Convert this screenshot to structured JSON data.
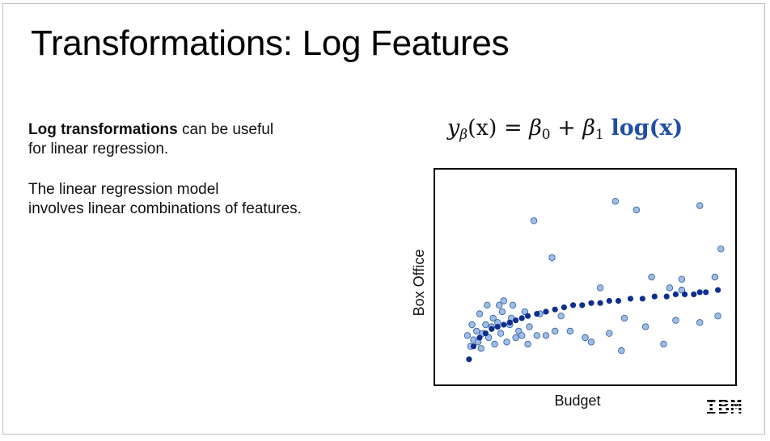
{
  "slide": {
    "title": "Transformations: Log Features",
    "para1_bold": "Log transformations",
    "para1_line1_rest": " can be useful",
    "para1_line2": "for linear regression.",
    "para2_line1": "The linear regression model",
    "para2_line2": "involves linear combinations of features.",
    "formula": {
      "y": "y",
      "beta": "β",
      "x_arg": "(x)",
      "equals": " = ",
      "b0": "β",
      "b0_sub": "0",
      "plus": " + ",
      "b1": "β",
      "b1_sub": "1",
      "log_term": "log(x)"
    },
    "logo": "IBM"
  },
  "colors": {
    "raw_points": "#9dbde8",
    "raw_points_edge": "#2f5c9c",
    "fitted_points": "#0e2f8f",
    "log_term": "#1f4fa6"
  },
  "chart_data": {
    "type": "scatter",
    "xlabel": "Budget",
    "ylabel": "Box Office",
    "xlim": [
      0,
      1
    ],
    "ylim": [
      0,
      1
    ],
    "ticks_shown": false,
    "grid": false,
    "series": [
      {
        "style": "raw",
        "x": [
          0.11,
          0.12,
          0.125,
          0.13,
          0.14,
          0.145,
          0.15,
          0.155,
          0.16,
          0.17,
          0.175,
          0.18,
          0.19,
          0.195,
          0.2,
          0.21,
          0.215,
          0.22,
          0.225,
          0.23,
          0.24,
          0.25,
          0.255,
          0.26,
          0.27,
          0.28,
          0.29,
          0.3,
          0.31,
          0.315,
          0.33,
          0.34,
          0.35,
          0.37,
          0.39,
          0.4,
          0.42,
          0.45,
          0.5,
          0.52,
          0.55,
          0.58,
          0.6,
          0.62,
          0.63,
          0.67,
          0.7,
          0.72,
          0.76,
          0.78,
          0.8,
          0.82,
          0.82,
          0.88,
          0.88,
          0.93,
          0.94,
          0.95
        ],
        "y": [
          0.23,
          0.18,
          0.28,
          0.21,
          0.25,
          0.2,
          0.33,
          0.17,
          0.24,
          0.28,
          0.37,
          0.22,
          0.27,
          0.31,
          0.19,
          0.29,
          0.37,
          0.24,
          0.34,
          0.39,
          0.2,
          0.28,
          0.31,
          0.37,
          0.22,
          0.25,
          0.23,
          0.34,
          0.19,
          0.27,
          0.76,
          0.23,
          0.33,
          0.23,
          0.59,
          0.25,
          0.32,
          0.25,
          0.22,
          0.2,
          0.45,
          0.24,
          0.85,
          0.16,
          0.31,
          0.81,
          0.27,
          0.5,
          0.19,
          0.45,
          0.3,
          0.49,
          0.44,
          0.83,
          0.29,
          0.5,
          0.32,
          0.63
        ]
      },
      {
        "style": "fit",
        "x": [
          0.115,
          0.13,
          0.15,
          0.17,
          0.19,
          0.21,
          0.23,
          0.25,
          0.27,
          0.29,
          0.31,
          0.34,
          0.37,
          0.4,
          0.43,
          0.46,
          0.49,
          0.52,
          0.55,
          0.58,
          0.61,
          0.65,
          0.69,
          0.73,
          0.77,
          0.8,
          0.83,
          0.86,
          0.88,
          0.9,
          0.94
        ],
        "y": [
          0.12,
          0.18,
          0.22,
          0.24,
          0.26,
          0.27,
          0.28,
          0.29,
          0.3,
          0.31,
          0.32,
          0.33,
          0.34,
          0.35,
          0.36,
          0.37,
          0.37,
          0.38,
          0.38,
          0.39,
          0.39,
          0.4,
          0.4,
          0.41,
          0.41,
          0.42,
          0.42,
          0.42,
          0.43,
          0.43,
          0.44
        ]
      }
    ]
  }
}
